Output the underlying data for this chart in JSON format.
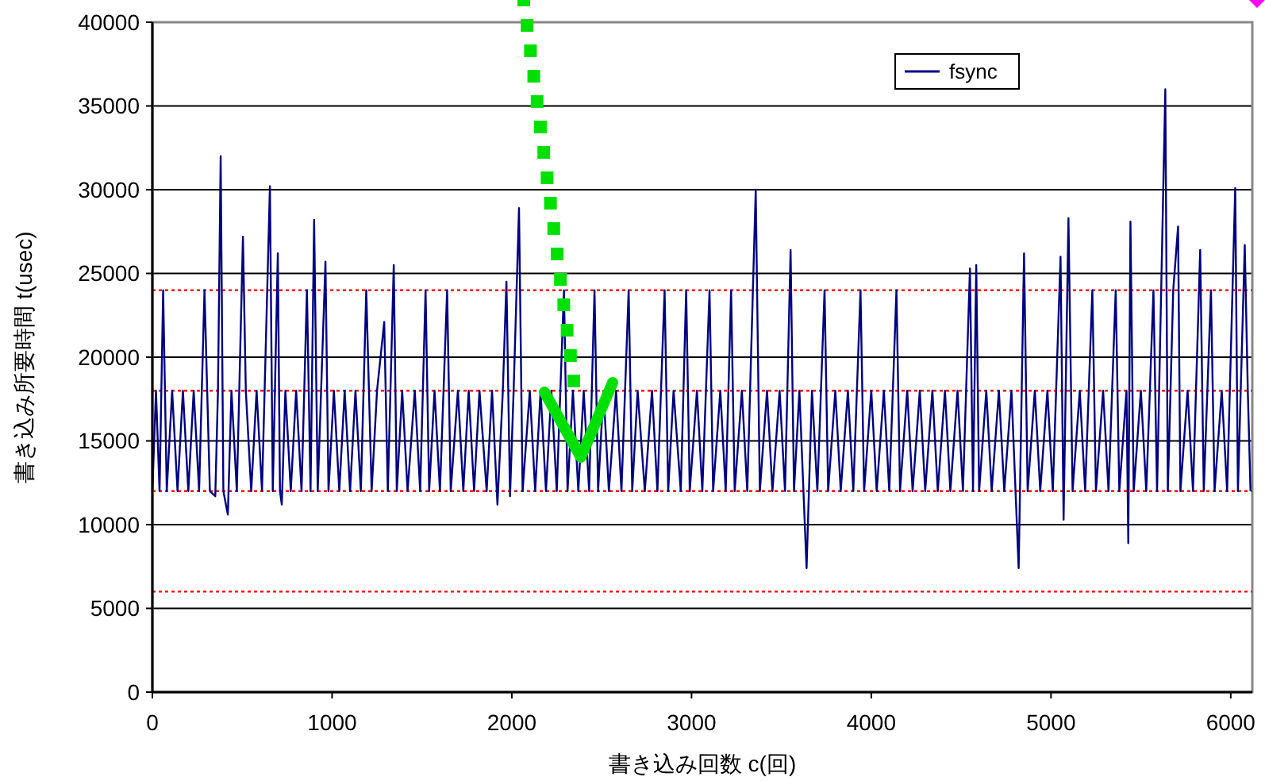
{
  "chart_data": {
    "type": "line",
    "xlabel": "書き込み回数 c(回)",
    "ylabel": "書き込み所要時間 t(usec)",
    "xlim": [
      0,
      6120
    ],
    "xticks": [
      0,
      1000,
      2000,
      3000,
      4000,
      5000,
      6000
    ],
    "ylim": [
      0,
      40000
    ],
    "yticks": [
      0,
      5000,
      10000,
      15000,
      20000,
      25000,
      30000,
      35000,
      40000
    ],
    "grid": "y",
    "legend": "top right",
    "marker": "none",
    "line_style": "solid",
    "ref_lines": [
      {
        "axis": "y",
        "value": 6000,
        "color": "#ff0000",
        "line_style": "dotted"
      },
      {
        "axis": "y",
        "value": 12000,
        "color": "#ff0000",
        "line_style": "dotted"
      },
      {
        "axis": "y",
        "value": 18000,
        "color": "#ff0000",
        "line_style": "dotted"
      },
      {
        "axis": "y",
        "value": 24000,
        "color": "#ff0000",
        "line_style": "dotted"
      }
    ],
    "series": [
      {
        "name": "fsync",
        "color": "#000080",
        "x": [
          0,
          20,
          40,
          60,
          80,
          110,
          140,
          170,
          200,
          230,
          260,
          290,
          320,
          350,
          365,
          380,
          395,
          420,
          440,
          470,
          504,
          520,
          550,
          580,
          610,
          654,
          670,
          698,
          710,
          720,
          740,
          770,
          800,
          830,
          860,
          880,
          900,
          920,
          963,
          980,
          1010,
          1040,
          1070,
          1100,
          1130,
          1160,
          1190,
          1220,
          1250,
          1290,
          1310,
          1343,
          1360,
          1390,
          1420,
          1460,
          1490,
          1520,
          1540,
          1570,
          1600,
          1640,
          1660,
          1700,
          1730,
          1760,
          1790,
          1820,
          1860,
          1890,
          1920,
          1950,
          1970,
          1990,
          2010,
          2040,
          2060,
          2100,
          2130,
          2160,
          2190,
          2220,
          2250,
          2290,
          2310,
          2340,
          2370,
          2400,
          2430,
          2460,
          2480,
          2510,
          2540,
          2580,
          2610,
          2650,
          2670,
          2700,
          2740,
          2780,
          2810,
          2850,
          2870,
          2900,
          2940,
          2970,
          2990,
          3030,
          3060,
          3100,
          3120,
          3160,
          3190,
          3220,
          3240,
          3280,
          3310,
          3357,
          3380,
          3420,
          3450,
          3490,
          3520,
          3551,
          3570,
          3600,
          3640,
          3670,
          3700,
          3740,
          3760,
          3800,
          3830,
          3870,
          3900,
          3940,
          3960,
          4000,
          4030,
          4070,
          4100,
          4140,
          4160,
          4200,
          4230,
          4270,
          4300,
          4340,
          4370,
          4410,
          4440,
          4480,
          4510,
          4549,
          4566,
          4584,
          4600,
          4640,
          4670,
          4710,
          4740,
          4780,
          4820,
          4850,
          4870,
          4910,
          4940,
          4980,
          5010,
          5053,
          5070,
          5097,
          5120,
          5160,
          5190,
          5230,
          5250,
          5290,
          5320,
          5360,
          5380,
          5420,
          5430,
          5442,
          5460,
          5500,
          5530,
          5570,
          5590,
          5636,
          5650,
          5680,
          5707,
          5720,
          5760,
          5790,
          5830,
          5850,
          5890,
          5910,
          5950,
          5980,
          6025,
          6040,
          6078,
          6095,
          6110
        ],
        "values": [
          12000,
          18000,
          12000,
          24000,
          12000,
          18000,
          12000,
          18000,
          12000,
          18000,
          12000,
          24000,
          12000,
          11700,
          18000,
          32000,
          12000,
          10600,
          18000,
          12000,
          27200,
          18000,
          12000,
          18000,
          12000,
          30200,
          12000,
          26200,
          12000,
          11200,
          18000,
          12000,
          18000,
          12000,
          24000,
          12000,
          28200,
          12000,
          25700,
          12000,
          18000,
          12000,
          18000,
          12000,
          18000,
          12000,
          24000,
          12000,
          18000,
          22100,
          12000,
          25500,
          12000,
          18000,
          12000,
          18000,
          12000,
          24000,
          12000,
          18000,
          12000,
          24000,
          12000,
          18000,
          12000,
          18000,
          12000,
          18000,
          12000,
          18000,
          11200,
          18000,
          24500,
          11700,
          18000,
          28900,
          12000,
          18000,
          12000,
          18000,
          12000,
          18000,
          12000,
          24000,
          12000,
          18000,
          12000,
          18000,
          12000,
          24000,
          12000,
          18000,
          12000,
          18000,
          12000,
          24000,
          12000,
          18000,
          12000,
          18000,
          12000,
          24000,
          12000,
          18000,
          12000,
          24000,
          12000,
          18000,
          12000,
          24000,
          12000,
          18000,
          12000,
          24000,
          12000,
          18000,
          12000,
          30000,
          12000,
          18000,
          12000,
          18000,
          12000,
          26400,
          12000,
          18000,
          7400,
          18000,
          12000,
          24000,
          12000,
          18000,
          12000,
          18000,
          12000,
          24000,
          12000,
          18000,
          12000,
          18000,
          12000,
          24000,
          12000,
          18000,
          12000,
          18000,
          12000,
          18000,
          12000,
          18000,
          12000,
          18000,
          12000,
          25300,
          12000,
          25500,
          12000,
          18000,
          12000,
          18000,
          12000,
          18000,
          7400,
          26200,
          12000,
          18000,
          12000,
          18000,
          12000,
          26000,
          10300,
          28300,
          12000,
          18000,
          12000,
          24000,
          12000,
          18000,
          12000,
          24000,
          12000,
          18000,
          8900,
          28100,
          12000,
          18000,
          12000,
          24000,
          12000,
          36000,
          12000,
          24000,
          27800,
          12000,
          18000,
          12000,
          26400,
          12000,
          24000,
          12000,
          18000,
          12000,
          30100,
          12000,
          26700,
          18000,
          12000
        ]
      }
    ]
  }
}
